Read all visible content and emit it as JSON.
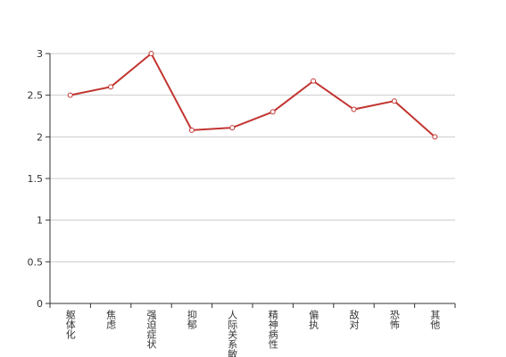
{
  "chart_data": {
    "type": "line",
    "categories": [
      "躯体化",
      "焦虑",
      "强迫症状",
      "抑郁",
      "人际关系敏感",
      "精神病性",
      "偏执",
      "敌对",
      "恐怖",
      "其他"
    ],
    "series": [
      {
        "color": "#c23531",
        "values": [
          2.5,
          2.6,
          3.0,
          2.08,
          2.11,
          2.3,
          2.67,
          2.33,
          2.43,
          2.0
        ]
      }
    ],
    "ylim": [
      0,
      3
    ],
    "yticks": [
      0,
      0.5,
      1,
      1.5,
      2,
      2.5,
      3
    ],
    "grid": true
  }
}
